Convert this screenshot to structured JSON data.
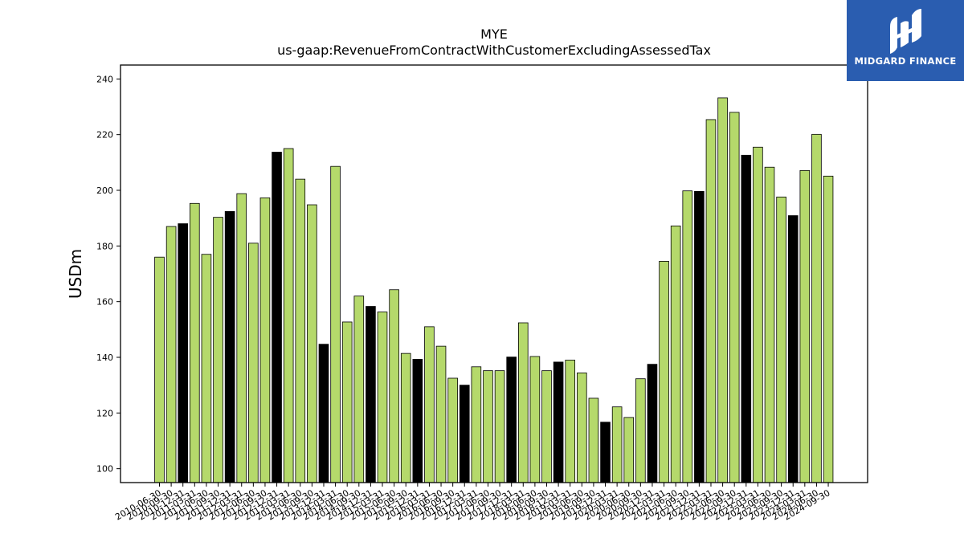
{
  "logo": {
    "text": "MIDGARD FINANCE",
    "icon": "midgard-logo-icon",
    "color": "#2a5db0"
  },
  "chart_data": {
    "type": "bar",
    "title": "MYE",
    "subtitle": "us-gaap:RevenueFromContractWithCustomerExcludingAssessedTax",
    "xlabel": "",
    "ylabel": "USDm",
    "ylim": [
      95,
      245
    ],
    "yticks": [
      100,
      120,
      140,
      160,
      180,
      200,
      220,
      240
    ],
    "grid": false,
    "legend": "none",
    "colors": {
      "normal": "#b5d96b",
      "highlight": "#000000",
      "edge": "#000000"
    },
    "categories": [
      "2010-06-30",
      "2010-09-30",
      "2010-12-31",
      "2011-03-31",
      "2011-06-30",
      "2011-09-30",
      "2011-12-31",
      "2012-03-31",
      "2012-06-30",
      "2012-09-30",
      "2012-12-31",
      "2013-03-31",
      "2013-06-30",
      "2013-09-30",
      "2013-12-31",
      "2014-03-31",
      "2014-06-30",
      "2014-09-30",
      "2014-12-31",
      "2015-03-31",
      "2015-06-30",
      "2015-09-30",
      "2015-12-31",
      "2016-03-31",
      "2016-06-30",
      "2016-09-30",
      "2016-12-31",
      "2017-03-31",
      "2017-06-30",
      "2017-09-30",
      "2017-12-31",
      "2018-03-31",
      "2018-06-30",
      "2018-09-30",
      "2018-12-31",
      "2019-03-31",
      "2019-06-30",
      "2019-09-30",
      "2019-12-31",
      "2020-03-31",
      "2020-06-30",
      "2020-09-30",
      "2020-12-31",
      "2021-03-31",
      "2021-06-30",
      "2021-09-30",
      "2021-12-31",
      "2022-03-31",
      "2022-06-30",
      "2022-09-30",
      "2022-12-31",
      "2023-03-31",
      "2023-06-30",
      "2023-09-30",
      "2023-12-31",
      "2024-03-31",
      "2024-06-30",
      "2024-09-30"
    ],
    "values": [
      176,
      187,
      188,
      195.3,
      177,
      190.3,
      192.4,
      198.8,
      181,
      197.3,
      213.7,
      215,
      204,
      194.8,
      144.7,
      208.6,
      152.7,
      162,
      158.3,
      156.3,
      164.3,
      141.4,
      139.3,
      151,
      144,
      132.5,
      130,
      136.6,
      135.2,
      135.2,
      140.1,
      152.4,
      140.3,
      135.2,
      138.3,
      139,
      134.4,
      125.3,
      116.7,
      122.2,
      118.4,
      132.3,
      137.5,
      174.5,
      187.2,
      199.8,
      199.6,
      225.4,
      233.2,
      228,
      212.6,
      215.5,
      208.3,
      197.6,
      190.9,
      207.1,
      220.1,
      205.1
    ],
    "highlight": [
      false,
      false,
      true,
      false,
      false,
      false,
      true,
      false,
      false,
      false,
      true,
      false,
      false,
      false,
      true,
      false,
      false,
      false,
      true,
      false,
      false,
      false,
      true,
      false,
      false,
      false,
      true,
      false,
      false,
      false,
      true,
      false,
      false,
      false,
      true,
      false,
      false,
      false,
      true,
      false,
      false,
      false,
      true,
      false,
      false,
      false,
      true,
      false,
      false,
      false,
      true,
      false,
      false,
      false,
      true,
      false,
      false,
      false
    ]
  }
}
